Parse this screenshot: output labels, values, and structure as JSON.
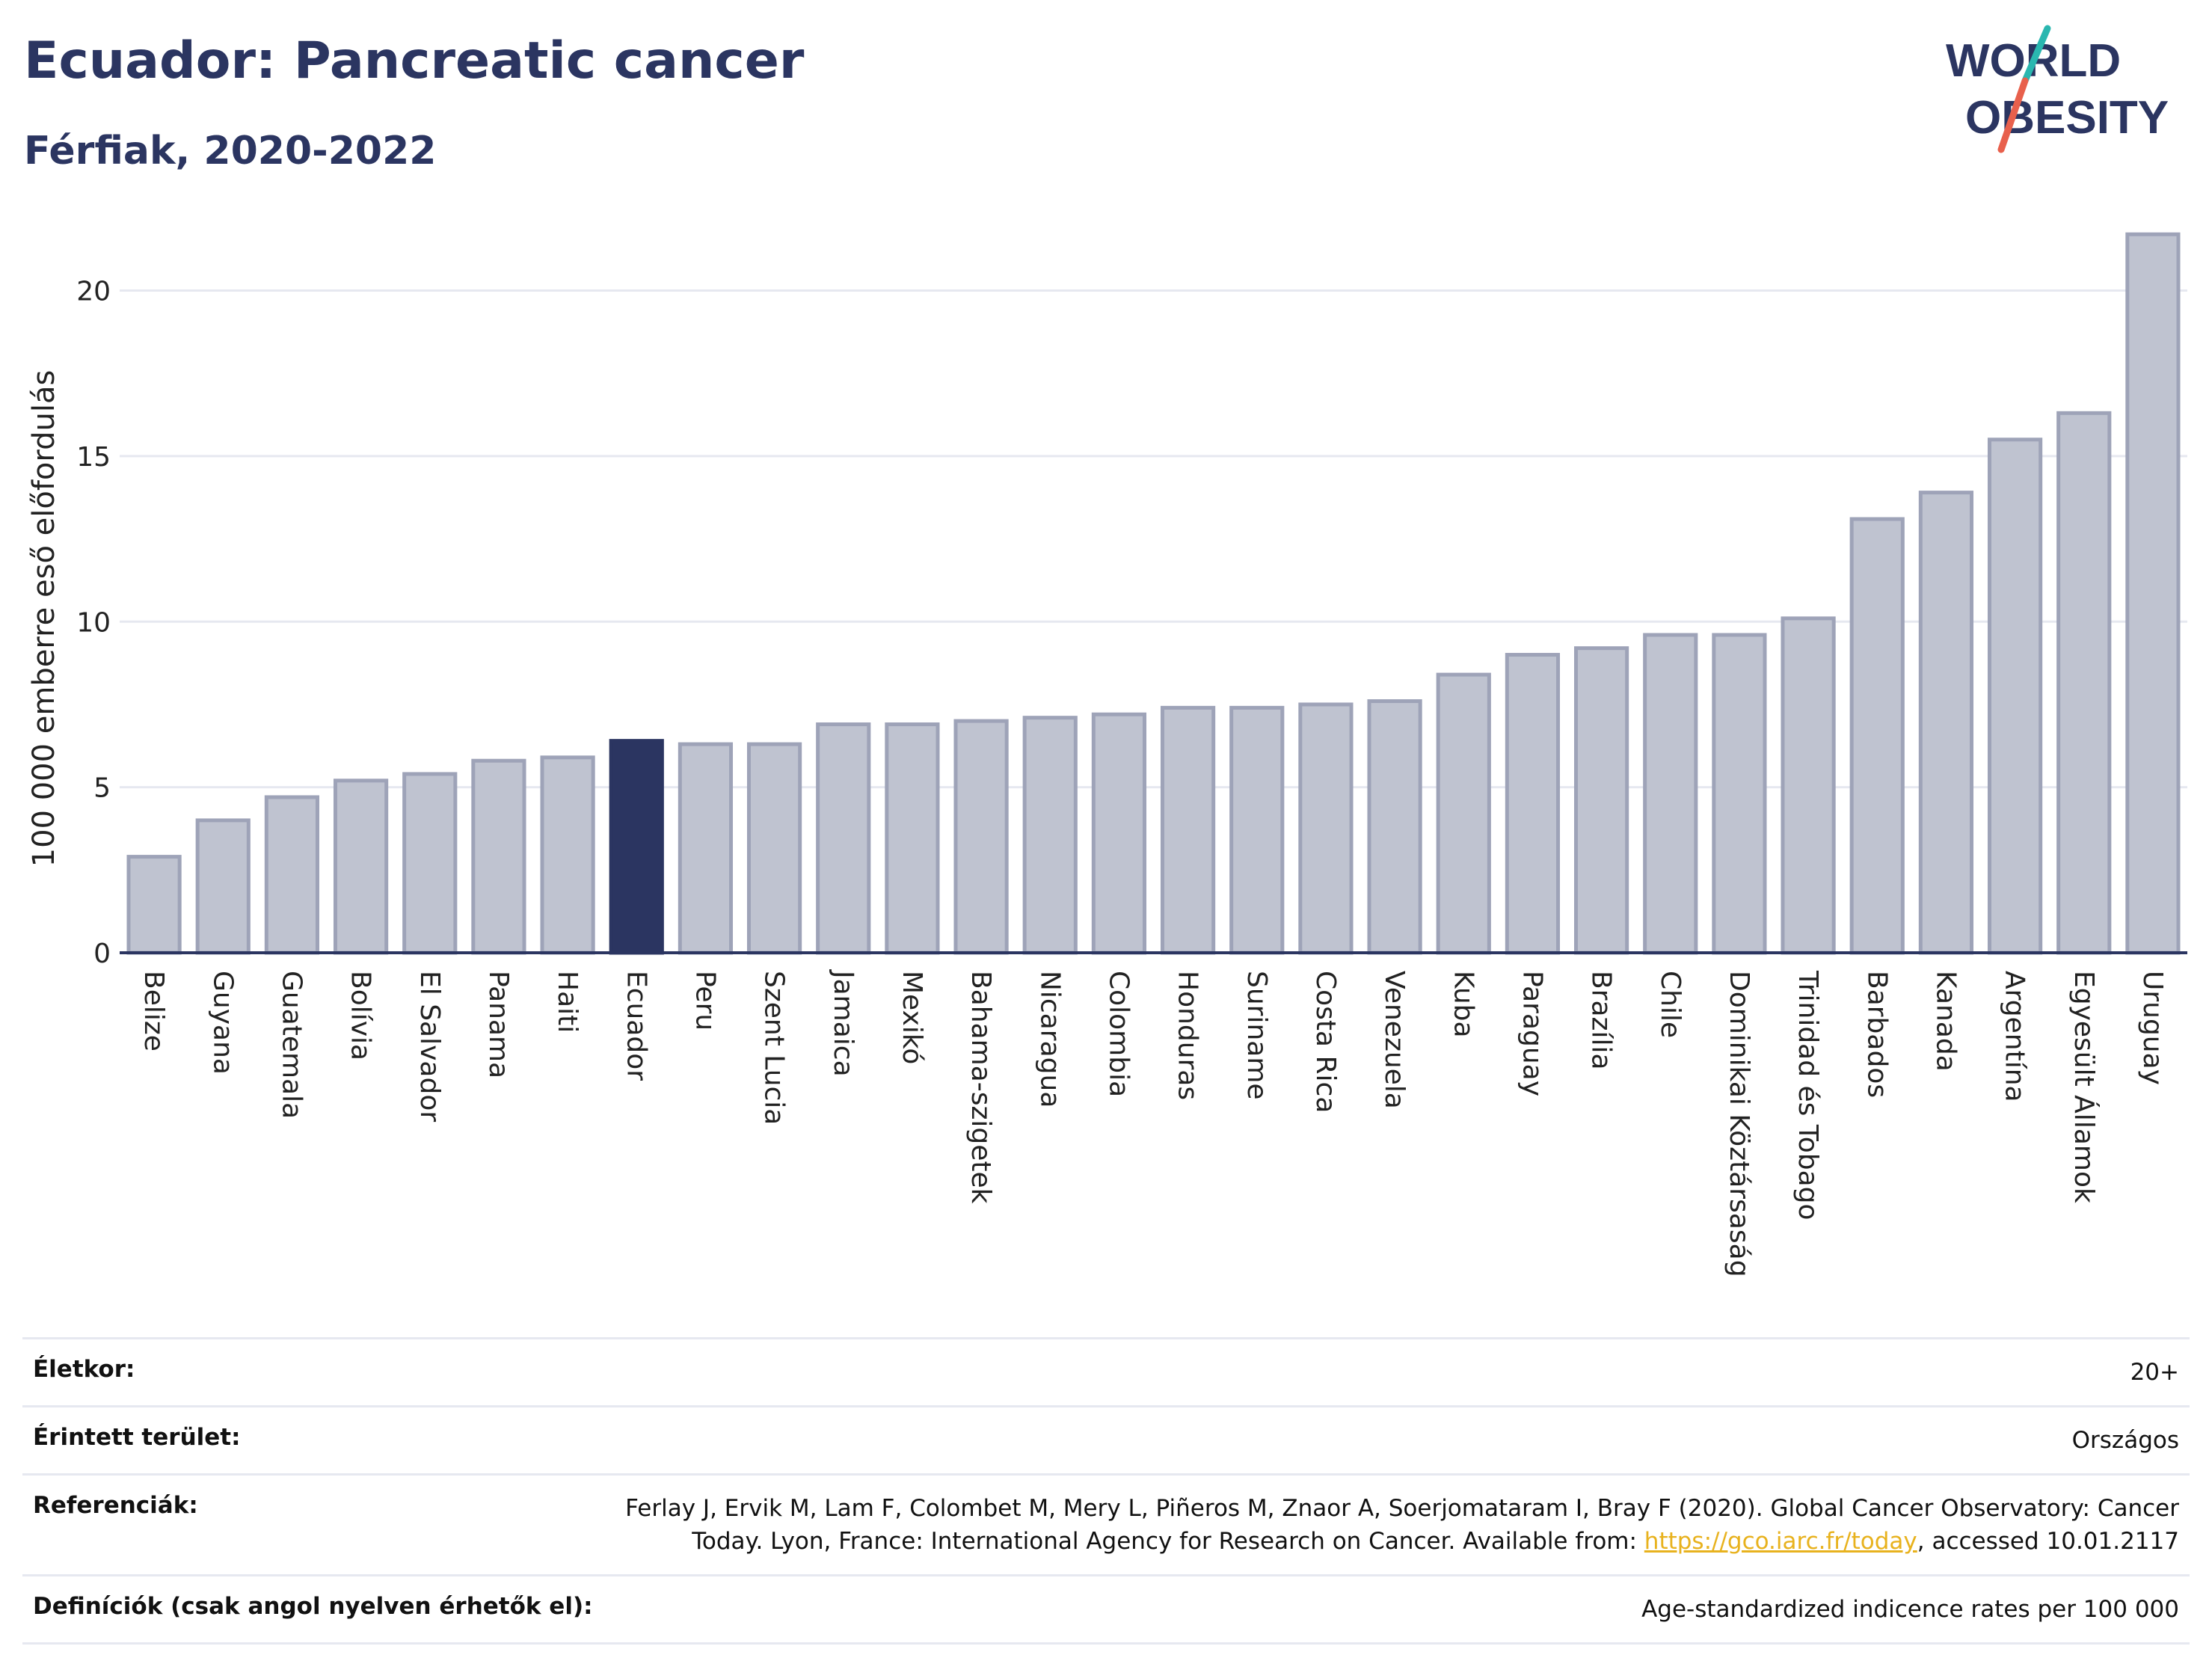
{
  "title": "Ecuador: Pancreatic cancer",
  "subtitle": "Férfiak, 2020-2022",
  "logo": {
    "line1": "WORLD",
    "line2": "OBESITY",
    "accent_teal": "#2ab7b0",
    "accent_red": "#e8604c",
    "text_color": "#2b3561"
  },
  "colors": {
    "bar": "#bfc3d0",
    "bar_border": "#9ea3b8",
    "highlight": "#2b3561",
    "grid": "#e6e8f0",
    "axis": "#2b3561"
  },
  "chart_data": {
    "type": "bar",
    "ylabel": "100 000 emberre eső előfordulás",
    "xlabel": "",
    "ylim": [
      0,
      22
    ],
    "yticks": [
      0,
      5,
      10,
      15,
      20
    ],
    "grid": true,
    "highlight": "Ecuador",
    "categories": [
      "Belize",
      "Guyana",
      "Guatemala",
      "Bolívia",
      "El Salvador",
      "Panama",
      "Haiti",
      "Ecuador",
      "Peru",
      "Szent Lucia",
      "Jamaica",
      "Mexikó",
      "Bahama-szigetek",
      "Nicaragua",
      "Colombia",
      "Honduras",
      "Suriname",
      "Costa Rica",
      "Venezuela",
      "Kuba",
      "Paraguay",
      "Brazília",
      "Chile",
      "Dominikai Köztársaság",
      "Trinidad és Tobago",
      "Barbados",
      "Kanada",
      "Argentína",
      "Egyesült Államok",
      "Uruguay"
    ],
    "values": [
      2.9,
      4.0,
      4.7,
      5.2,
      5.4,
      5.8,
      5.9,
      6.4,
      6.3,
      6.3,
      6.9,
      6.9,
      7.0,
      7.1,
      7.2,
      7.4,
      7.4,
      7.5,
      7.6,
      8.4,
      9.0,
      9.2,
      9.6,
      9.6,
      10.1,
      13.1,
      13.9,
      15.5,
      16.3,
      21.7
    ]
  },
  "info": {
    "age_label": "Életkor:",
    "age_value": "20+",
    "area_label": "Érintett terület:",
    "area_value": "Országos",
    "ref_label": "Referenciák:",
    "ref_text_1": "Ferlay J, Ervik M, Lam F, Colombet M, Mery L, Piñeros M, Znaor A, Soerjomataram I, Bray F (2020). Global Cancer Observatory: Cancer Today. Lyon, France: International Agency for Research on Cancer. Available from: ",
    "ref_link": "https://gco.iarc.fr/today",
    "ref_text_2": ", accessed 10.01.2117",
    "def_label": "Definíciók (csak angol nyelven érhetők el):",
    "def_value": "Age-standardized indicence rates per 100 000"
  }
}
